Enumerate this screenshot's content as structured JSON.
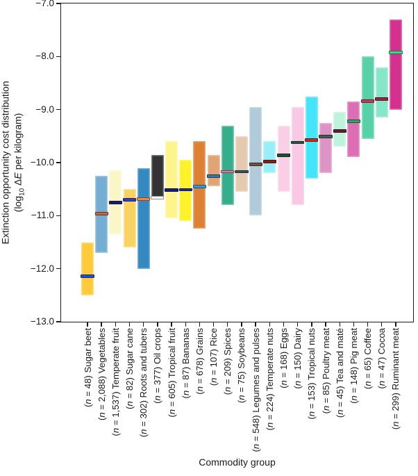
{
  "figure": {
    "y_axis": {
      "title_line1": "Extinction opportunity cost distribution",
      "line2_prefix": "(log",
      "line2_sub": "10",
      "line2_delta": " Δ",
      "line2_E": "E",
      "line2_suffix": " per kilogram)"
    },
    "x_axis": {
      "title": "Commodity group"
    }
  },
  "chart_data": {
    "type": "bar",
    "subtype": "floating-range-bars-with-median",
    "title": "",
    "xlabel": "Commodity group",
    "ylabel": "Extinction opportunity cost distribution (log10 ΔE per kilogram)",
    "ylim": [
      -13.0,
      -7.0
    ],
    "grid": false,
    "legend": false,
    "n_symbol": "n",
    "yticks": [
      {
        "label": "−7.0",
        "value": -7.0
      },
      {
        "label": "−8.0",
        "value": -8.0
      },
      {
        "label": "−9.0",
        "value": -9.0
      },
      {
        "label": "−10.0",
        "value": -10.0
      },
      {
        "label": "−11.0",
        "value": -11.0
      },
      {
        "label": "−12.0",
        "value": -12.0
      },
      {
        "label": "−13.0",
        "value": -13.0
      }
    ],
    "series": [
      {
        "label": "Sugar beet",
        "n": "48",
        "low": -12.5,
        "high": -11.5,
        "median": -12.14,
        "fill": "#FFCB3D",
        "median_color": "#1F4FD8"
      },
      {
        "label": "Vegetables",
        "n": "2,088",
        "low": -11.7,
        "high": -10.25,
        "median": -10.96,
        "fill": "#74AFD3",
        "median_color": "#C1663F"
      },
      {
        "label": "Temperate fruit",
        "n": "1,537",
        "low": -11.35,
        "high": -10.15,
        "median": -10.75,
        "fill": "#FAF6C6",
        "median_color": "#1A1F71"
      },
      {
        "label": "Sugar cane",
        "n": "82",
        "low": -11.6,
        "high": -10.5,
        "median": -10.7,
        "fill": "#F9D262",
        "median_color": "#2F3FC8"
      },
      {
        "label": "Roots and tubers",
        "n": "302",
        "low": -12.0,
        "high": -10.1,
        "median": -10.69,
        "fill": "#3389C0",
        "median_color": "#F0854A"
      },
      {
        "label": "Oil crops",
        "n": "377",
        "low": -10.7,
        "high": -9.85,
        "median": -10.66,
        "fill": "#333333",
        "median_color": "#FFFFFF"
      },
      {
        "label": "Tropical fruit",
        "n": "605",
        "low": -11.05,
        "high": -9.6,
        "median": -10.52,
        "fill": "#FFF48C",
        "median_color": "#141A86"
      },
      {
        "label": "Bananas",
        "n": "87",
        "low": -11.1,
        "high": -9.95,
        "median": -10.51,
        "fill": "#FFF22A",
        "median_color": "#1823D8"
      },
      {
        "label": "Grains",
        "n": "678",
        "low": -11.25,
        "high": -9.6,
        "median": -10.45,
        "fill": "#DD8135",
        "median_color": "#2E9BE8"
      },
      {
        "label": "Rice",
        "n": "107",
        "low": -10.45,
        "high": -9.85,
        "median": -10.26,
        "fill": "#E0A572",
        "median_color": "#3D74A8"
      },
      {
        "label": "Spices",
        "n": "209",
        "low": -10.8,
        "high": -9.3,
        "median": -10.17,
        "fill": "#35AE8C",
        "median_color": "#F76FA4"
      },
      {
        "label": "Soybeans",
        "n": "75",
        "low": -10.55,
        "high": -9.5,
        "median": -10.17,
        "fill": "#E4CBB0",
        "median_color": "#39506B"
      },
      {
        "label": "Legumes and pulses",
        "n": "548",
        "low": -11.0,
        "high": -8.95,
        "median": -10.03,
        "fill": "#B2CBDA",
        "median_color": "#6B5140"
      },
      {
        "label": "Temperate nuts",
        "n": "224",
        "low": -10.2,
        "high": -9.6,
        "median": -9.98,
        "fill": "#98EFFA",
        "median_color": "#8C1F10"
      },
      {
        "label": "Eggs",
        "n": "168",
        "low": -10.55,
        "high": -9.3,
        "median": -9.86,
        "fill": "#FBCEE7",
        "median_color": "#1E4D33"
      },
      {
        "label": "Dairy",
        "n": "150",
        "low": -10.8,
        "high": -8.95,
        "median": -9.62,
        "fill": "#F8C8E4",
        "median_color": "#235C3C"
      },
      {
        "label": "Tropical nuts",
        "n": "153",
        "low": -10.3,
        "high": -8.75,
        "median": -9.57,
        "fill": "#44E4F9",
        "median_color": "#CC2A12"
      },
      {
        "label": "Poultry meat",
        "n": "85",
        "low": -10.2,
        "high": -9.25,
        "median": -9.51,
        "fill": "#DC94C4",
        "median_color": "#3F5F51"
      },
      {
        "label": "Tea and maté",
        "n": "45",
        "low": -9.7,
        "high": -9.05,
        "median": -9.4,
        "fill": "#BDF2DC",
        "median_color": "#6B1A32"
      },
      {
        "label": "Pig meat",
        "n": "148",
        "low": -9.9,
        "high": -8.85,
        "median": -9.22,
        "fill": "#DC6EB4",
        "median_color": "#28A869"
      },
      {
        "label": "Coffee",
        "n": "65",
        "low": -9.55,
        "high": -8.0,
        "median": -8.84,
        "fill": "#57D2A8",
        "median_color": "#C43A5C"
      },
      {
        "label": "Cocoa",
        "n": "47",
        "low": -9.15,
        "high": -8.2,
        "median": -8.8,
        "fill": "#85E7C8",
        "median_color": "#992342"
      },
      {
        "label": "Ruminant meat",
        "n": "299",
        "low": -9.0,
        "high": -7.3,
        "median": -7.92,
        "fill": "#D4318F",
        "median_color": "#3ED687"
      }
    ]
  }
}
